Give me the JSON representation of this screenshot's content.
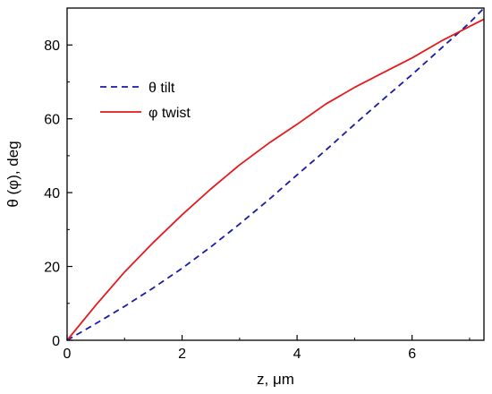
{
  "chart_data": {
    "type": "line",
    "title": "",
    "xlabel": "z, μm",
    "ylabel": "θ (φ), deg",
    "xlim": [
      0,
      7.25
    ],
    "ylim": [
      0,
      90
    ],
    "xticks": [
      0,
      2,
      4,
      6
    ],
    "yticks": [
      0,
      20,
      40,
      60,
      80
    ],
    "grid": false,
    "legend_position": "upper-left",
    "series": [
      {
        "name": "θ tilt",
        "color": "#1a1aa8",
        "style": "dashed",
        "x": [
          0,
          0.5,
          1.0,
          1.5,
          2.0,
          2.5,
          3.0,
          3.5,
          4.0,
          4.5,
          5.0,
          5.5,
          6.0,
          6.5,
          7.0,
          7.25
        ],
        "y": [
          0,
          4.5,
          9.2,
          14.2,
          19.5,
          25.3,
          31.5,
          38.0,
          44.8,
          51.5,
          58.5,
          65.3,
          72.0,
          79.0,
          86.0,
          90.0
        ]
      },
      {
        "name": "φ twist",
        "color": "#e41a1c",
        "style": "solid",
        "x": [
          0,
          0.5,
          1.0,
          1.5,
          2.0,
          2.5,
          3.0,
          3.5,
          4.0,
          4.5,
          5.0,
          5.5,
          6.0,
          6.5,
          7.0,
          7.25
        ],
        "y": [
          0,
          9.5,
          18.5,
          26.5,
          34.0,
          41.0,
          47.5,
          53.3,
          58.5,
          64.0,
          68.5,
          72.5,
          76.5,
          81.0,
          85.0,
          87.0
        ]
      }
    ]
  }
}
